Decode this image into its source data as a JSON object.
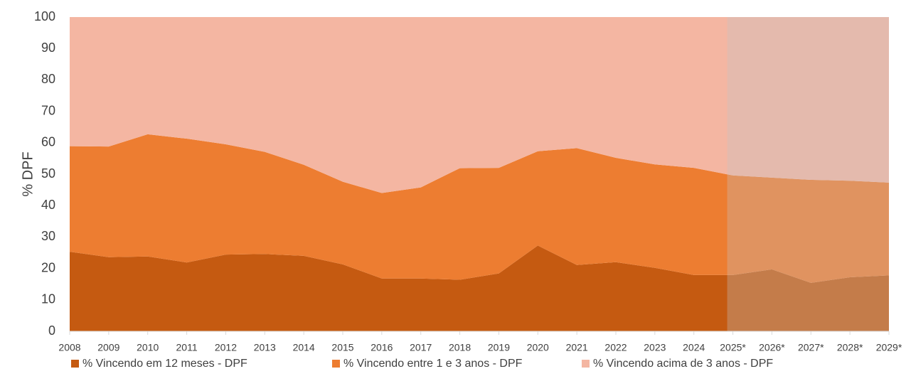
{
  "chart_data": {
    "type": "stacked_area",
    "y_label": "% DPF",
    "categories": [
      "2008",
      "2009",
      "2010",
      "2011",
      "2012",
      "2013",
      "2014",
      "2015",
      "2016",
      "2017",
      "2018",
      "2019",
      "2020",
      "2021",
      "2022",
      "2023",
      "2024",
      "2025*",
      "2026*",
      "2027*",
      "2028*",
      "2029*"
    ],
    "series": [
      {
        "name": "% Vincendo em 12 meses - DPF",
        "color": "#c55a11",
        "values": [
          25.3,
          23.6,
          23.8,
          21.9,
          24.4,
          24.6,
          24.0,
          21.3,
          16.8,
          16.8,
          16.4,
          18.4,
          27.3,
          21.1,
          22.0,
          20.2,
          17.9,
          17.9,
          19.7,
          15.4,
          17.2,
          17.8
        ]
      },
      {
        "name": "% Vincendo entre 1 e 3 anos - DPF",
        "color": "#ed7d31",
        "values": [
          33.6,
          35.2,
          38.9,
          39.4,
          35.1,
          32.5,
          29.0,
          26.3,
          27.2,
          29.0,
          35.5,
          33.6,
          30.0,
          37.2,
          33.2,
          32.9,
          34.1,
          31.7,
          29.2,
          32.8,
          30.7,
          29.5
        ]
      },
      {
        "name": "% Vincendo acima de 3 anos - DPF",
        "color": "#f4b6a2",
        "values": [
          41.1,
          41.2,
          37.3,
          38.7,
          40.5,
          42.9,
          47.0,
          52.4,
          56.0,
          54.2,
          48.1,
          48.0,
          42.7,
          41.7,
          44.8,
          46.9,
          48.0,
          50.4,
          51.1,
          51.8,
          52.1,
          52.7
        ]
      }
    ],
    "ylim": [
      0,
      100
    ],
    "yticks": [
      0,
      10,
      20,
      30,
      40,
      50,
      60,
      70,
      80,
      90,
      100
    ]
  }
}
